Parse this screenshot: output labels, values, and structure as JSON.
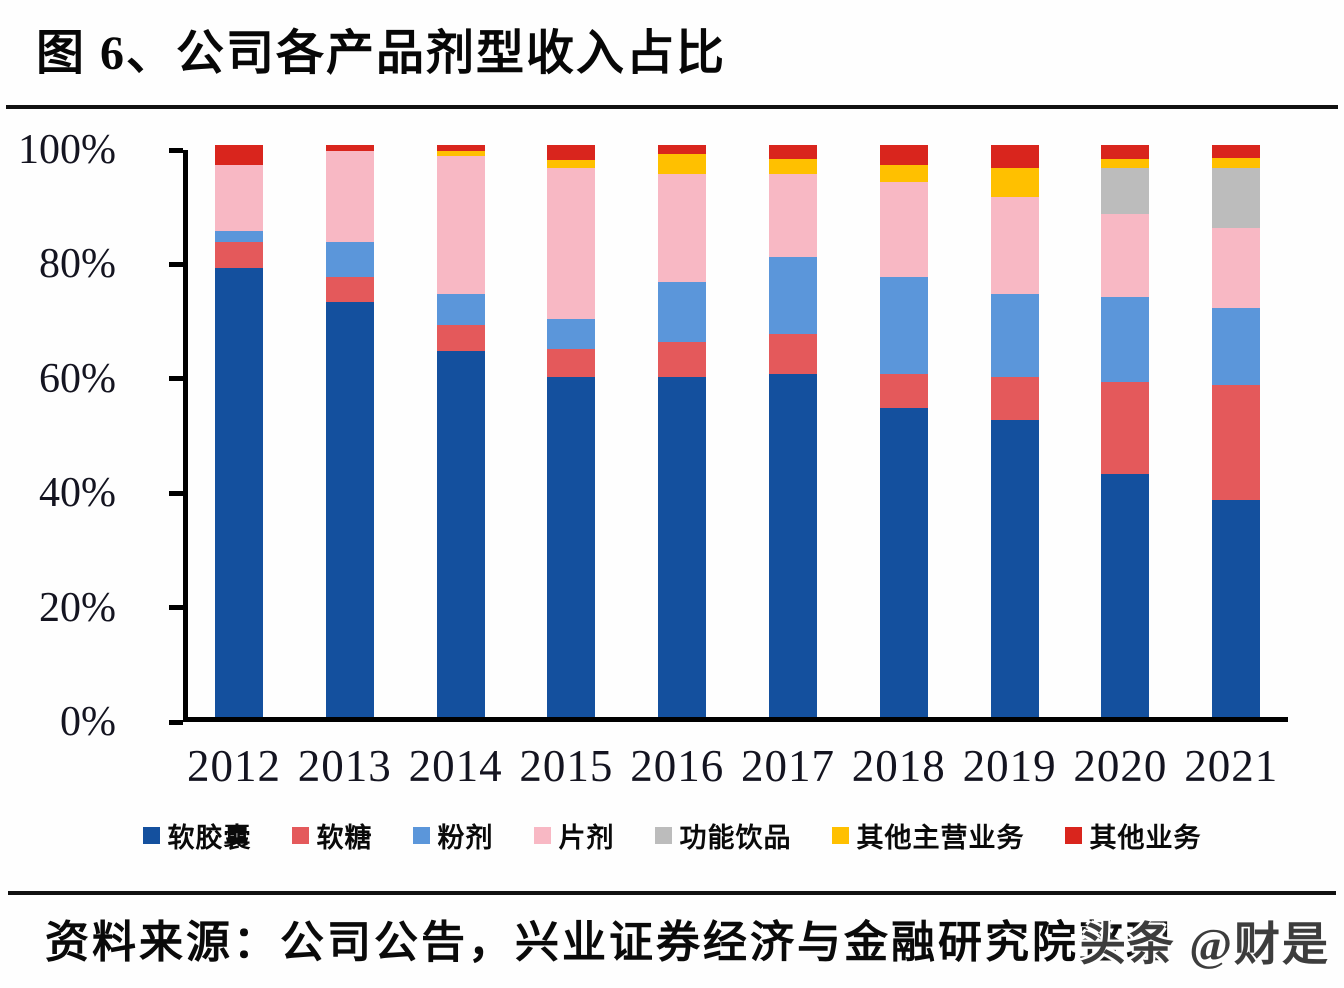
{
  "title": "图 6、公司各产品剂型收入占比",
  "source": {
    "label": "资料来源：公司公告，兴业证券经济与金融研究院整理"
  },
  "watermark": "头条 @财是",
  "chart_data": {
    "type": "bar",
    "stacked": true,
    "unit": "percent",
    "title": "公司各产品剂型收入占比",
    "xlabel": "",
    "ylabel": "",
    "grid": false,
    "legend_position": "bottom",
    "categories": [
      "2012",
      "2013",
      "2014",
      "2015",
      "2016",
      "2017",
      "2018",
      "2019",
      "2020",
      "2021"
    ],
    "y_axis": {
      "min": 0,
      "max": 100,
      "tick_step": 20,
      "tick_labels": [
        "0%",
        "20%",
        "40%",
        "60%",
        "80%",
        "100%"
      ]
    },
    "series": [
      {
        "name": "软胶囊",
        "color": "#14509E",
        "values": [
          78.5,
          72.5,
          64.0,
          59.5,
          59.5,
          60.0,
          54.0,
          52.0,
          42.5,
          38.0
        ]
      },
      {
        "name": "软糖",
        "color": "#E4595B",
        "values": [
          4.5,
          4.5,
          4.5,
          4.8,
          6.0,
          7.0,
          6.0,
          7.5,
          16.0,
          20.0
        ]
      },
      {
        "name": "粉剂",
        "color": "#5B96DA",
        "values": [
          2.0,
          6.0,
          5.5,
          5.2,
          10.5,
          13.5,
          17.0,
          14.5,
          15.0,
          13.5
        ]
      },
      {
        "name": "片剂",
        "color": "#F8B8C4",
        "values": [
          11.5,
          16.0,
          24.0,
          26.5,
          19.0,
          14.5,
          16.5,
          17.0,
          14.5,
          14.0
        ]
      },
      {
        "name": "功能饮品",
        "color": "#BCBCBC",
        "values": [
          0,
          0,
          0,
          0,
          0,
          0,
          0,
          0,
          8.0,
          10.5
        ]
      },
      {
        "name": "其他主营业务",
        "color": "#FFC000",
        "values": [
          0,
          0,
          1.0,
          1.3,
          3.5,
          2.5,
          3.0,
          5.0,
          1.5,
          1.7
        ]
      },
      {
        "name": "其他业务",
        "color": "#D9251D",
        "values": [
          3.5,
          1.0,
          1.0,
          2.7,
          1.5,
          2.5,
          3.5,
          4.0,
          2.5,
          2.3
        ]
      }
    ]
  }
}
